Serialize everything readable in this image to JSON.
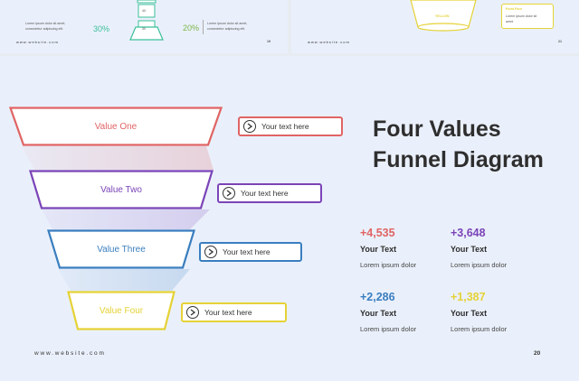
{
  "thumbnails": {
    "left": {
      "text_a_line1": "Lorem ipsum dolor sit amet,",
      "text_a_line2": "consectetur adipiscing elit.",
      "percent_a": "30%",
      "percent_b": "20%",
      "text_b_line1": "Lorem ipsum dolor sit amet,",
      "text_b_line2": "consectetur adipiscing elit.",
      "funnel_label_1": "40",
      "funnel_label_2": "30",
      "website": "www.website.com",
      "page": "19"
    },
    "right": {
      "funnel_label": "YELLOW",
      "tag_title": "Point Four",
      "tag_line1": "Lorem ipsum dolor sit",
      "tag_line2": "amet.",
      "website": "www.website.com",
      "page": "21"
    }
  },
  "slide": {
    "title_line1": "Four Values",
    "title_line2": "Funnel Diagram",
    "layers": [
      {
        "label": "Value One",
        "color": "#e06464",
        "tag": "Your text here"
      },
      {
        "label": "Value Two",
        "color": "#7b44b8",
        "tag": "Your text here"
      },
      {
        "label": "Value Three",
        "color": "#3a7ebf",
        "tag": "Your text here"
      },
      {
        "label": "Value Four",
        "color": "#e5d236",
        "tag": "Your text here"
      }
    ],
    "stats": [
      {
        "value": "+4,535",
        "label": "Your Text",
        "desc": "Lorem ipsum dolor",
        "color": "#e06464"
      },
      {
        "value": "+3,648",
        "label": "Your Text",
        "desc": "Lorem ipsum dolor",
        "color": "#7b44b8"
      },
      {
        "value": "+2,286",
        "label": "Your Text",
        "desc": "Lorem ipsum dolor",
        "color": "#3a7ebf"
      },
      {
        "value": "+1,387",
        "label": "Your Text",
        "desc": "Lorem ipsum dolor",
        "color": "#e5d236"
      }
    ],
    "website": "www.website.com",
    "page": "20"
  }
}
